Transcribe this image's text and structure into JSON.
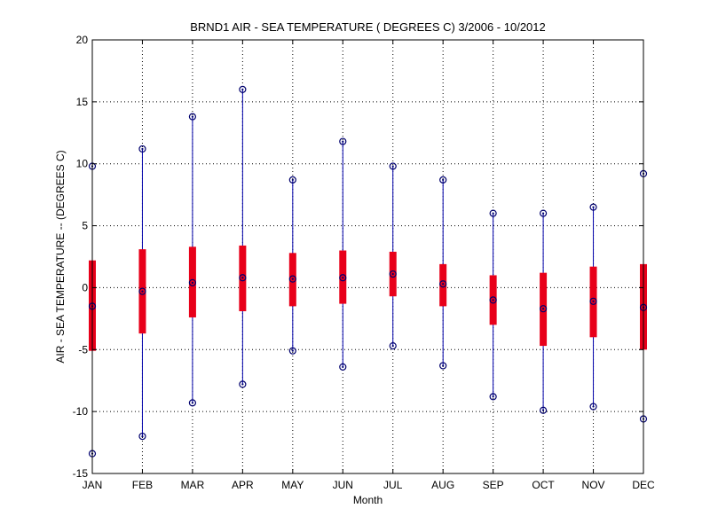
{
  "chart_data": {
    "type": "boxplot",
    "title": "BRND1  AIR - SEA TEMPERATURE ( DEGREES C) 3/2006 - 10/2012",
    "xlabel": "Month",
    "ylabel": "AIR - SEA TEMPERATURE -- (DEGREES C)",
    "ylim": [
      -15,
      20
    ],
    "yticks": [
      -15,
      -10,
      -5,
      0,
      5,
      10,
      15,
      20
    ],
    "grid": true,
    "categories": [
      "JAN",
      "FEB",
      "MAR",
      "APR",
      "MAY",
      "JUN",
      "JUL",
      "AUG",
      "SEP",
      "OCT",
      "NOV",
      "DEC"
    ],
    "series": [
      {
        "values": [
          {
            "min": -13.4,
            "q1": -5.1,
            "median": -1.5,
            "q3": 2.2,
            "max": 9.8
          },
          {
            "min": -12.0,
            "q1": -3.7,
            "median": -0.3,
            "q3": 3.1,
            "max": 11.2
          },
          {
            "min": -9.3,
            "q1": -2.4,
            "median": 0.4,
            "q3": 3.3,
            "max": 13.8
          },
          {
            "min": -7.8,
            "q1": -1.9,
            "median": 0.8,
            "q3": 3.4,
            "max": 16.0
          },
          {
            "min": -5.1,
            "q1": -1.5,
            "median": 0.7,
            "q3": 2.8,
            "max": 8.7
          },
          {
            "min": -6.4,
            "q1": -1.3,
            "median": 0.8,
            "q3": 3.0,
            "max": 11.8
          },
          {
            "min": -4.7,
            "q1": -0.7,
            "median": 1.1,
            "q3": 2.9,
            "max": 9.8
          },
          {
            "min": -6.3,
            "q1": -1.5,
            "median": 0.3,
            "q3": 1.9,
            "max": 8.7
          },
          {
            "min": -8.8,
            "q1": -3.0,
            "median": -1.0,
            "q3": 1.0,
            "max": 6.0
          },
          {
            "min": -9.9,
            "q1": -4.7,
            "median": -1.7,
            "q3": 1.2,
            "max": 6.0
          },
          {
            "min": -9.6,
            "q1": -4.0,
            "median": -1.1,
            "q3": 1.7,
            "max": 6.5
          },
          {
            "min": -10.6,
            "q1": -5.0,
            "median": -1.6,
            "q3": 1.9,
            "max": 9.2
          }
        ]
      }
    ],
    "colors": {
      "whisker": "#0000aa",
      "box": "#e8001a",
      "marker": "#00006e",
      "grid": "#000000",
      "axis": "#000000"
    }
  }
}
